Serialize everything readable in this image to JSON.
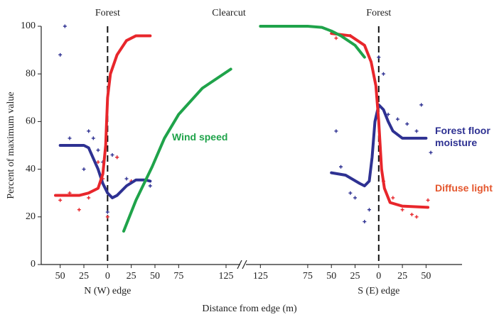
{
  "chart_data": [
    {
      "type": "line",
      "ylabel": "Percent of maximum value",
      "xlabel": "Distance from edge (m)",
      "edge_label": "N (W) edge",
      "annotations": [
        "Forest",
        "Clearcut"
      ],
      "xlim": [
        -70,
        140
      ],
      "xticks": [
        {
          "value": -50,
          "label": "50"
        },
        {
          "value": -25,
          "label": "25"
        },
        0,
        25,
        50,
        75,
        125
      ],
      "ylim": [
        0,
        100
      ],
      "yticks": [
        0,
        20,
        40,
        60,
        80,
        100
      ],
      "series": [
        {
          "color": "#2e3192",
          "x": [
            -50,
            -25,
            -20,
            -10,
            -5,
            0,
            5,
            10,
            20,
            30,
            40,
            45
          ],
          "values": [
            50,
            50,
            49,
            40,
            34,
            30,
            28,
            29,
            33,
            35.5,
            35.5,
            35
          ]
        },
        {
          "color": "#e8262b",
          "x": [
            -55,
            -30,
            -20,
            -10,
            -5,
            -2,
            0,
            3,
            10,
            20,
            30,
            45
          ],
          "values": [
            29,
            29,
            30,
            32,
            38,
            50,
            70,
            80,
            88,
            94,
            96,
            96
          ]
        },
        {
          "name": "Wind speed",
          "color": "#1fa34a",
          "x": [
            17,
            30,
            47,
            60,
            75,
            100,
            130
          ],
          "values": [
            14,
            27,
            41,
            53,
            63,
            74,
            82
          ]
        }
      ],
      "points": [
        {
          "color": "#2e3192",
          "x": [
            -50,
            -45,
            -40,
            -25,
            -20,
            -15,
            -10,
            -5,
            0,
            5,
            10,
            20,
            45
          ],
          "values": [
            88,
            100,
            53,
            40,
            56,
            53,
            48,
            43,
            22,
            46,
            45,
            36,
            33
          ]
        },
        {
          "color": "#e8262b",
          "x": [
            -50,
            -40,
            -30,
            -20,
            -10,
            -5,
            0,
            10,
            25
          ],
          "values": [
            27,
            30,
            23,
            28,
            43,
            36,
            20,
            45,
            35
          ]
        }
      ]
    },
    {
      "type": "line",
      "edge_label": "S (E) edge",
      "annotations": [
        "Forest"
      ],
      "xlim": [
        -132,
        88
      ],
      "xticks": [
        {
          "value": -125,
          "label": "125"
        },
        {
          "value": -75,
          "label": "75"
        },
        {
          "value": -50,
          "label": "50"
        },
        {
          "value": -25,
          "label": "25"
        },
        0,
        25,
        50
      ],
      "ylim": [
        0,
        100
      ],
      "series": [
        {
          "name": "Forest floor moisture",
          "color": "#2e3192",
          "x": [
            -50,
            -35,
            -20,
            -15,
            -10,
            -7,
            -4,
            0,
            5,
            10,
            15,
            25,
            50
          ],
          "values": [
            38.5,
            37.5,
            34,
            33,
            35,
            45,
            60,
            67,
            65,
            60,
            56,
            53,
            53
          ]
        },
        {
          "name": "Diffuse light",
          "color": "#e8262b",
          "x": [
            -50,
            -30,
            -15,
            -8,
            -3,
            0,
            3,
            6,
            12,
            25,
            52
          ],
          "values": [
            97,
            96,
            92,
            85,
            75,
            60,
            40,
            32,
            26,
            24.5,
            24
          ]
        },
        {
          "color": "#1fa34a",
          "x": [
            -125,
            -75,
            -60,
            -50,
            -40,
            -25,
            -15
          ],
          "values": [
            100,
            100,
            99.5,
            98,
            96,
            92,
            87
          ]
        }
      ],
      "points": [
        {
          "color": "#2e3192",
          "x": [
            -45,
            -40,
            -30,
            -25,
            -15,
            -10,
            0,
            5,
            10,
            20,
            30,
            40,
            45,
            55
          ],
          "values": [
            56,
            41,
            30,
            28,
            18,
            23,
            87,
            80,
            63,
            61,
            59,
            56,
            67,
            47
          ]
        },
        {
          "color": "#e8262b",
          "x": [
            -45,
            -30,
            5,
            15,
            25,
            35,
            40,
            52
          ],
          "values": [
            95,
            96,
            35,
            28,
            23,
            21,
            20,
            27
          ]
        }
      ]
    }
  ]
}
